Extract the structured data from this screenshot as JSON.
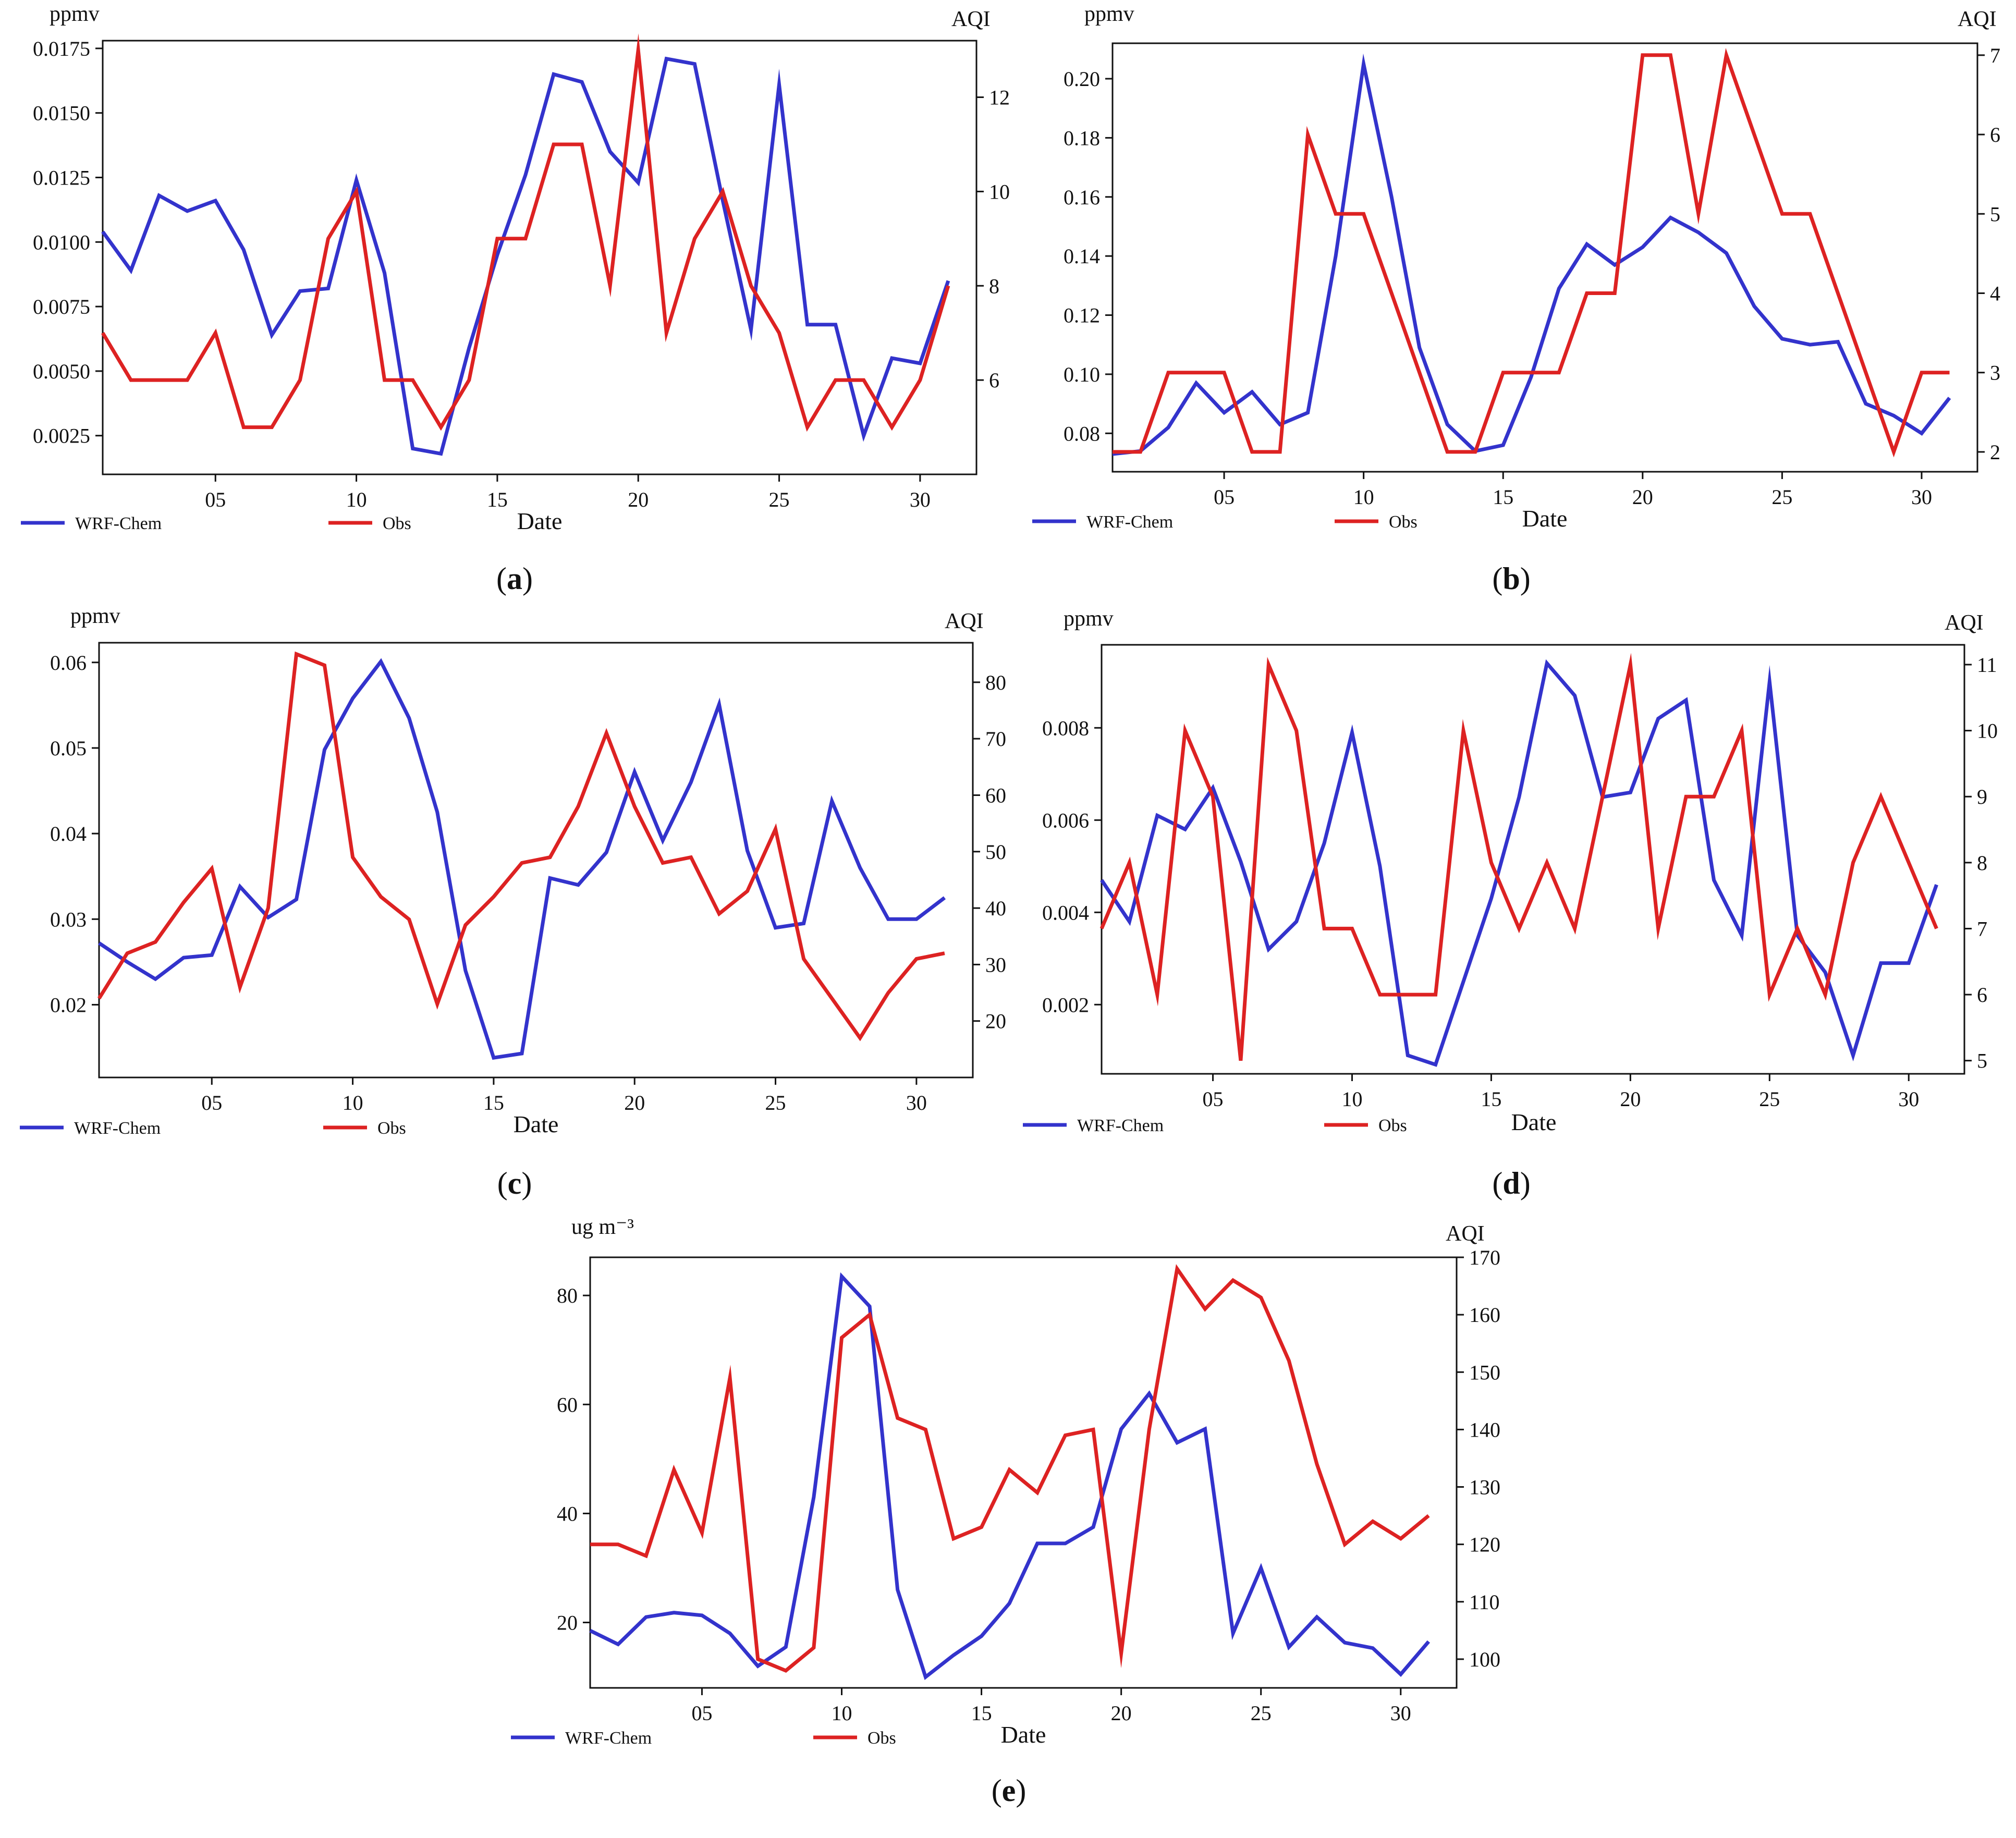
{
  "figure": {
    "colors": {
      "model": "#3333cc",
      "obs": "#dd2222",
      "axis": "#111111",
      "background": "#ffffff"
    },
    "legend": {
      "model_label": "WRF-Chem",
      "obs_label": "Obs"
    }
  },
  "chart_data": [
    {
      "id": "a",
      "panel_label": "(a)",
      "letter": "a",
      "type": "line",
      "xlabel": "Date",
      "ylabel_left": "ppmv",
      "ylabel_right": "AQI",
      "x": [
        1,
        2,
        3,
        4,
        5,
        6,
        7,
        8,
        9,
        10,
        11,
        12,
        13,
        14,
        15,
        16,
        17,
        18,
        19,
        20,
        21,
        22,
        23,
        24,
        25,
        26,
        27,
        28,
        29,
        30,
        31
      ],
      "xlim": [
        1,
        32
      ],
      "xticks": [
        5,
        10,
        15,
        20,
        25,
        30
      ],
      "xtick_labels": [
        "05",
        "10",
        "15",
        "20",
        "25",
        "30"
      ],
      "ylim_left": [
        0.001,
        0.0178
      ],
      "yticks_left": [
        0.0025,
        0.005,
        0.0075,
        0.01,
        0.0125,
        0.015,
        0.0175
      ],
      "ytick_labels_left": [
        "0.0025",
        "0.0050",
        "0.0075",
        "0.0100",
        "0.0125",
        "0.0150",
        "0.0175"
      ],
      "ylim_right": [
        4.0,
        13.2
      ],
      "yticks_right": [
        6,
        8,
        10,
        12
      ],
      "ytick_labels_right": [
        "6",
        "8",
        "10",
        "12"
      ],
      "series": [
        {
          "name": "WRF-Chem",
          "axis": "left",
          "values": [
            0.0104,
            0.0089,
            0.0118,
            0.0112,
            0.0116,
            0.0097,
            0.0064,
            0.0081,
            0.0082,
            0.0124,
            0.0088,
            0.002,
            0.0018,
            0.0059,
            0.0095,
            0.0126,
            0.0165,
            0.0162,
            0.0135,
            0.0123,
            0.0171,
            0.0169,
            0.0116,
            0.0066,
            0.0161,
            0.0068,
            0.0068,
            0.0025,
            0.0055,
            0.0053,
            0.0085
          ]
        },
        {
          "name": "Obs",
          "axis": "right",
          "values": [
            7,
            6,
            6,
            6,
            7,
            5,
            5,
            6,
            9,
            10,
            6,
            6,
            5,
            6,
            9,
            9,
            11,
            11,
            8,
            13,
            7,
            9,
            10,
            8,
            7,
            5,
            6,
            6,
            5,
            6,
            8
          ]
        }
      ]
    },
    {
      "id": "b",
      "panel_label": "(b)",
      "letter": "b",
      "type": "line",
      "xlabel": "Date",
      "ylabel_left": "ppmv",
      "ylabel_right": "AQI",
      "x": [
        1,
        2,
        3,
        4,
        5,
        6,
        7,
        8,
        9,
        10,
        11,
        12,
        13,
        14,
        15,
        16,
        17,
        18,
        19,
        20,
        21,
        22,
        23,
        24,
        25,
        26,
        27,
        28,
        29,
        30,
        31
      ],
      "xlim": [
        1,
        32
      ],
      "xticks": [
        5,
        10,
        15,
        20,
        25,
        30
      ],
      "xtick_labels": [
        "05",
        "10",
        "15",
        "20",
        "25",
        "30"
      ],
      "ylim_left": [
        0.067,
        0.212
      ],
      "yticks_left": [
        0.08,
        0.1,
        0.12,
        0.14,
        0.16,
        0.18,
        0.2
      ],
      "ytick_labels_left": [
        "0.08",
        "0.10",
        "0.12",
        "0.14",
        "0.16",
        "0.18",
        "0.20"
      ],
      "ylim_right": [
        1.75,
        7.15
      ],
      "yticks_right": [
        2,
        3,
        4,
        5,
        6,
        7
      ],
      "ytick_labels_right": [
        "2",
        "3",
        "4",
        "5",
        "6",
        "7"
      ],
      "series": [
        {
          "name": "WRF-Chem",
          "axis": "left",
          "values": [
            0.073,
            0.074,
            0.082,
            0.097,
            0.087,
            0.094,
            0.083,
            0.087,
            0.14,
            0.205,
            0.16,
            0.109,
            0.083,
            0.074,
            0.076,
            0.099,
            0.129,
            0.144,
            0.137,
            0.143,
            0.153,
            0.148,
            0.141,
            0.123,
            0.112,
            0.11,
            0.111,
            0.09,
            0.086,
            0.08,
            0.092
          ]
        },
        {
          "name": "Obs",
          "axis": "right",
          "values": [
            2,
            2,
            3,
            3,
            3,
            2,
            2,
            6,
            5,
            5,
            4,
            3,
            2,
            2,
            3,
            3,
            3,
            4,
            4,
            7,
            7,
            5,
            7,
            6,
            5,
            5,
            4,
            3,
            2,
            3,
            3
          ]
        }
      ]
    },
    {
      "id": "c",
      "panel_label": "(c)",
      "letter": "c",
      "type": "line",
      "xlabel": "Date",
      "ylabel_left": "ppmv",
      "ylabel_right": "AQI",
      "x": [
        1,
        2,
        3,
        4,
        5,
        6,
        7,
        8,
        9,
        10,
        11,
        12,
        13,
        14,
        15,
        16,
        17,
        18,
        19,
        20,
        21,
        22,
        23,
        24,
        25,
        26,
        27,
        28,
        29,
        30,
        31
      ],
      "xlim": [
        1,
        32
      ],
      "xticks": [
        5,
        10,
        15,
        20,
        25,
        30
      ],
      "xtick_labels": [
        "05",
        "10",
        "15",
        "20",
        "25",
        "30"
      ],
      "ylim_left": [
        0.0115,
        0.0623
      ],
      "yticks_left": [
        0.02,
        0.03,
        0.04,
        0.05,
        0.06
      ],
      "ytick_labels_left": [
        "0.02",
        "0.03",
        "0.04",
        "0.05",
        "0.06"
      ],
      "ylim_right": [
        10,
        87
      ],
      "yticks_right": [
        20,
        30,
        40,
        50,
        60,
        70,
        80
      ],
      "ytick_labels_right": [
        "20",
        "30",
        "40",
        "50",
        "60",
        "70",
        "80"
      ],
      "series": [
        {
          "name": "WRF-Chem",
          "axis": "left",
          "values": [
            0.0272,
            0.025,
            0.023,
            0.0255,
            0.0258,
            0.0338,
            0.0302,
            0.0323,
            0.0498,
            0.0558,
            0.0601,
            0.0535,
            0.0425,
            0.024,
            0.0138,
            0.0143,
            0.0348,
            0.034,
            0.0378,
            0.0472,
            0.0392,
            0.046,
            0.0551,
            0.038,
            0.029,
            0.0295,
            0.0438,
            0.036,
            0.03,
            0.03,
            0.0325
          ]
        },
        {
          "name": "Obs",
          "axis": "right",
          "values": [
            24,
            32,
            34,
            41,
            47,
            26,
            40,
            85,
            83,
            49,
            42,
            38,
            23,
            37,
            42,
            48,
            49,
            58,
            71,
            58,
            48,
            49,
            39,
            43,
            54,
            31,
            24,
            17,
            25,
            31,
            32
          ]
        }
      ]
    },
    {
      "id": "d",
      "panel_label": "(d)",
      "letter": "d",
      "type": "line",
      "xlabel": "Date",
      "ylabel_left": "ppmv",
      "ylabel_right": "AQI",
      "x": [
        1,
        2,
        3,
        4,
        5,
        6,
        7,
        8,
        9,
        10,
        11,
        12,
        13,
        14,
        15,
        16,
        17,
        18,
        19,
        20,
        21,
        22,
        23,
        24,
        25,
        26,
        27,
        28,
        29,
        30,
        31
      ],
      "xlim": [
        1,
        32
      ],
      "xticks": [
        5,
        10,
        15,
        20,
        25,
        30
      ],
      "xtick_labels": [
        "05",
        "10",
        "15",
        "20",
        "25",
        "30"
      ],
      "ylim_left": [
        0.0005,
        0.0098
      ],
      "yticks_left": [
        0.002,
        0.004,
        0.006,
        0.008
      ],
      "ytick_labels_left": [
        "0.002",
        "0.004",
        "0.006",
        "0.008"
      ],
      "ylim_right": [
        4.8,
        11.3
      ],
      "yticks_right": [
        5,
        6,
        7,
        8,
        9,
        10,
        11
      ],
      "ytick_labels_right": [
        "5",
        "6",
        "7",
        "8",
        "9",
        "10",
        "11"
      ],
      "series": [
        {
          "name": "WRF-Chem",
          "axis": "left",
          "values": [
            0.0047,
            0.0038,
            0.0061,
            0.0058,
            0.0067,
            0.0051,
            0.0032,
            0.0038,
            0.0055,
            0.0079,
            0.005,
            0.0009,
            0.0007,
            0.0025,
            0.0043,
            0.0065,
            0.0094,
            0.0087,
            0.0065,
            0.0066,
            0.0082,
            0.0086,
            0.0047,
            0.0035,
            0.009,
            0.0035,
            0.0027,
            0.0009,
            0.0029,
            0.0029,
            0.0046
          ]
        },
        {
          "name": "Obs",
          "axis": "right",
          "values": [
            7,
            8,
            6,
            10,
            9,
            5,
            11,
            10,
            7,
            7,
            6,
            6,
            6,
            10,
            8,
            7,
            8,
            7,
            9,
            11,
            7,
            9,
            9,
            10,
            6,
            7,
            6,
            8,
            9,
            8,
            7
          ]
        }
      ]
    },
    {
      "id": "e",
      "panel_label": "(e)",
      "letter": "e",
      "type": "line",
      "xlabel": "Date",
      "ylabel_left": "ug m⁻³",
      "ylabel_right": "AQI",
      "x": [
        1,
        2,
        3,
        4,
        5,
        6,
        7,
        8,
        9,
        10,
        11,
        12,
        13,
        14,
        15,
        16,
        17,
        18,
        19,
        20,
        21,
        22,
        23,
        24,
        25,
        26,
        27,
        28,
        29,
        30,
        31
      ],
      "xlim": [
        1,
        32
      ],
      "xticks": [
        5,
        10,
        15,
        20,
        25,
        30
      ],
      "xtick_labels": [
        "05",
        "10",
        "15",
        "20",
        "25",
        "30"
      ],
      "ylim_left": [
        8,
        87
      ],
      "yticks_left": [
        20,
        40,
        60,
        80
      ],
      "ytick_labels_left": [
        "20",
        "40",
        "60",
        "80"
      ],
      "ylim_right": [
        95,
        170
      ],
      "yticks_right": [
        100,
        110,
        120,
        130,
        140,
        150,
        160,
        170
      ],
      "ytick_labels_right": [
        "100",
        "110",
        "120",
        "130",
        "140",
        "150",
        "160",
        "170"
      ],
      "series": [
        {
          "name": "WRF-Chem",
          "axis": "left",
          "values": [
            18.5,
            16.0,
            21.0,
            21.8,
            21.3,
            18.0,
            12.0,
            15.5,
            43.0,
            83.5,
            78.0,
            26.0,
            10.0,
            14.0,
            17.5,
            23.5,
            34.5,
            34.5,
            37.5,
            55.5,
            62.0,
            53.0,
            55.5,
            18.0,
            30.0,
            15.5,
            21.0,
            16.3,
            15.3,
            10.5,
            16.5
          ]
        },
        {
          "name": "Obs",
          "axis": "right",
          "values": [
            120,
            120,
            118,
            133,
            122,
            149,
            100,
            98,
            102,
            156,
            160,
            142,
            140,
            121,
            123,
            133,
            129,
            139,
            140,
            101,
            140,
            168,
            161,
            166,
            163,
            152,
            134,
            120,
            124,
            121,
            125
          ]
        }
      ]
    }
  ]
}
